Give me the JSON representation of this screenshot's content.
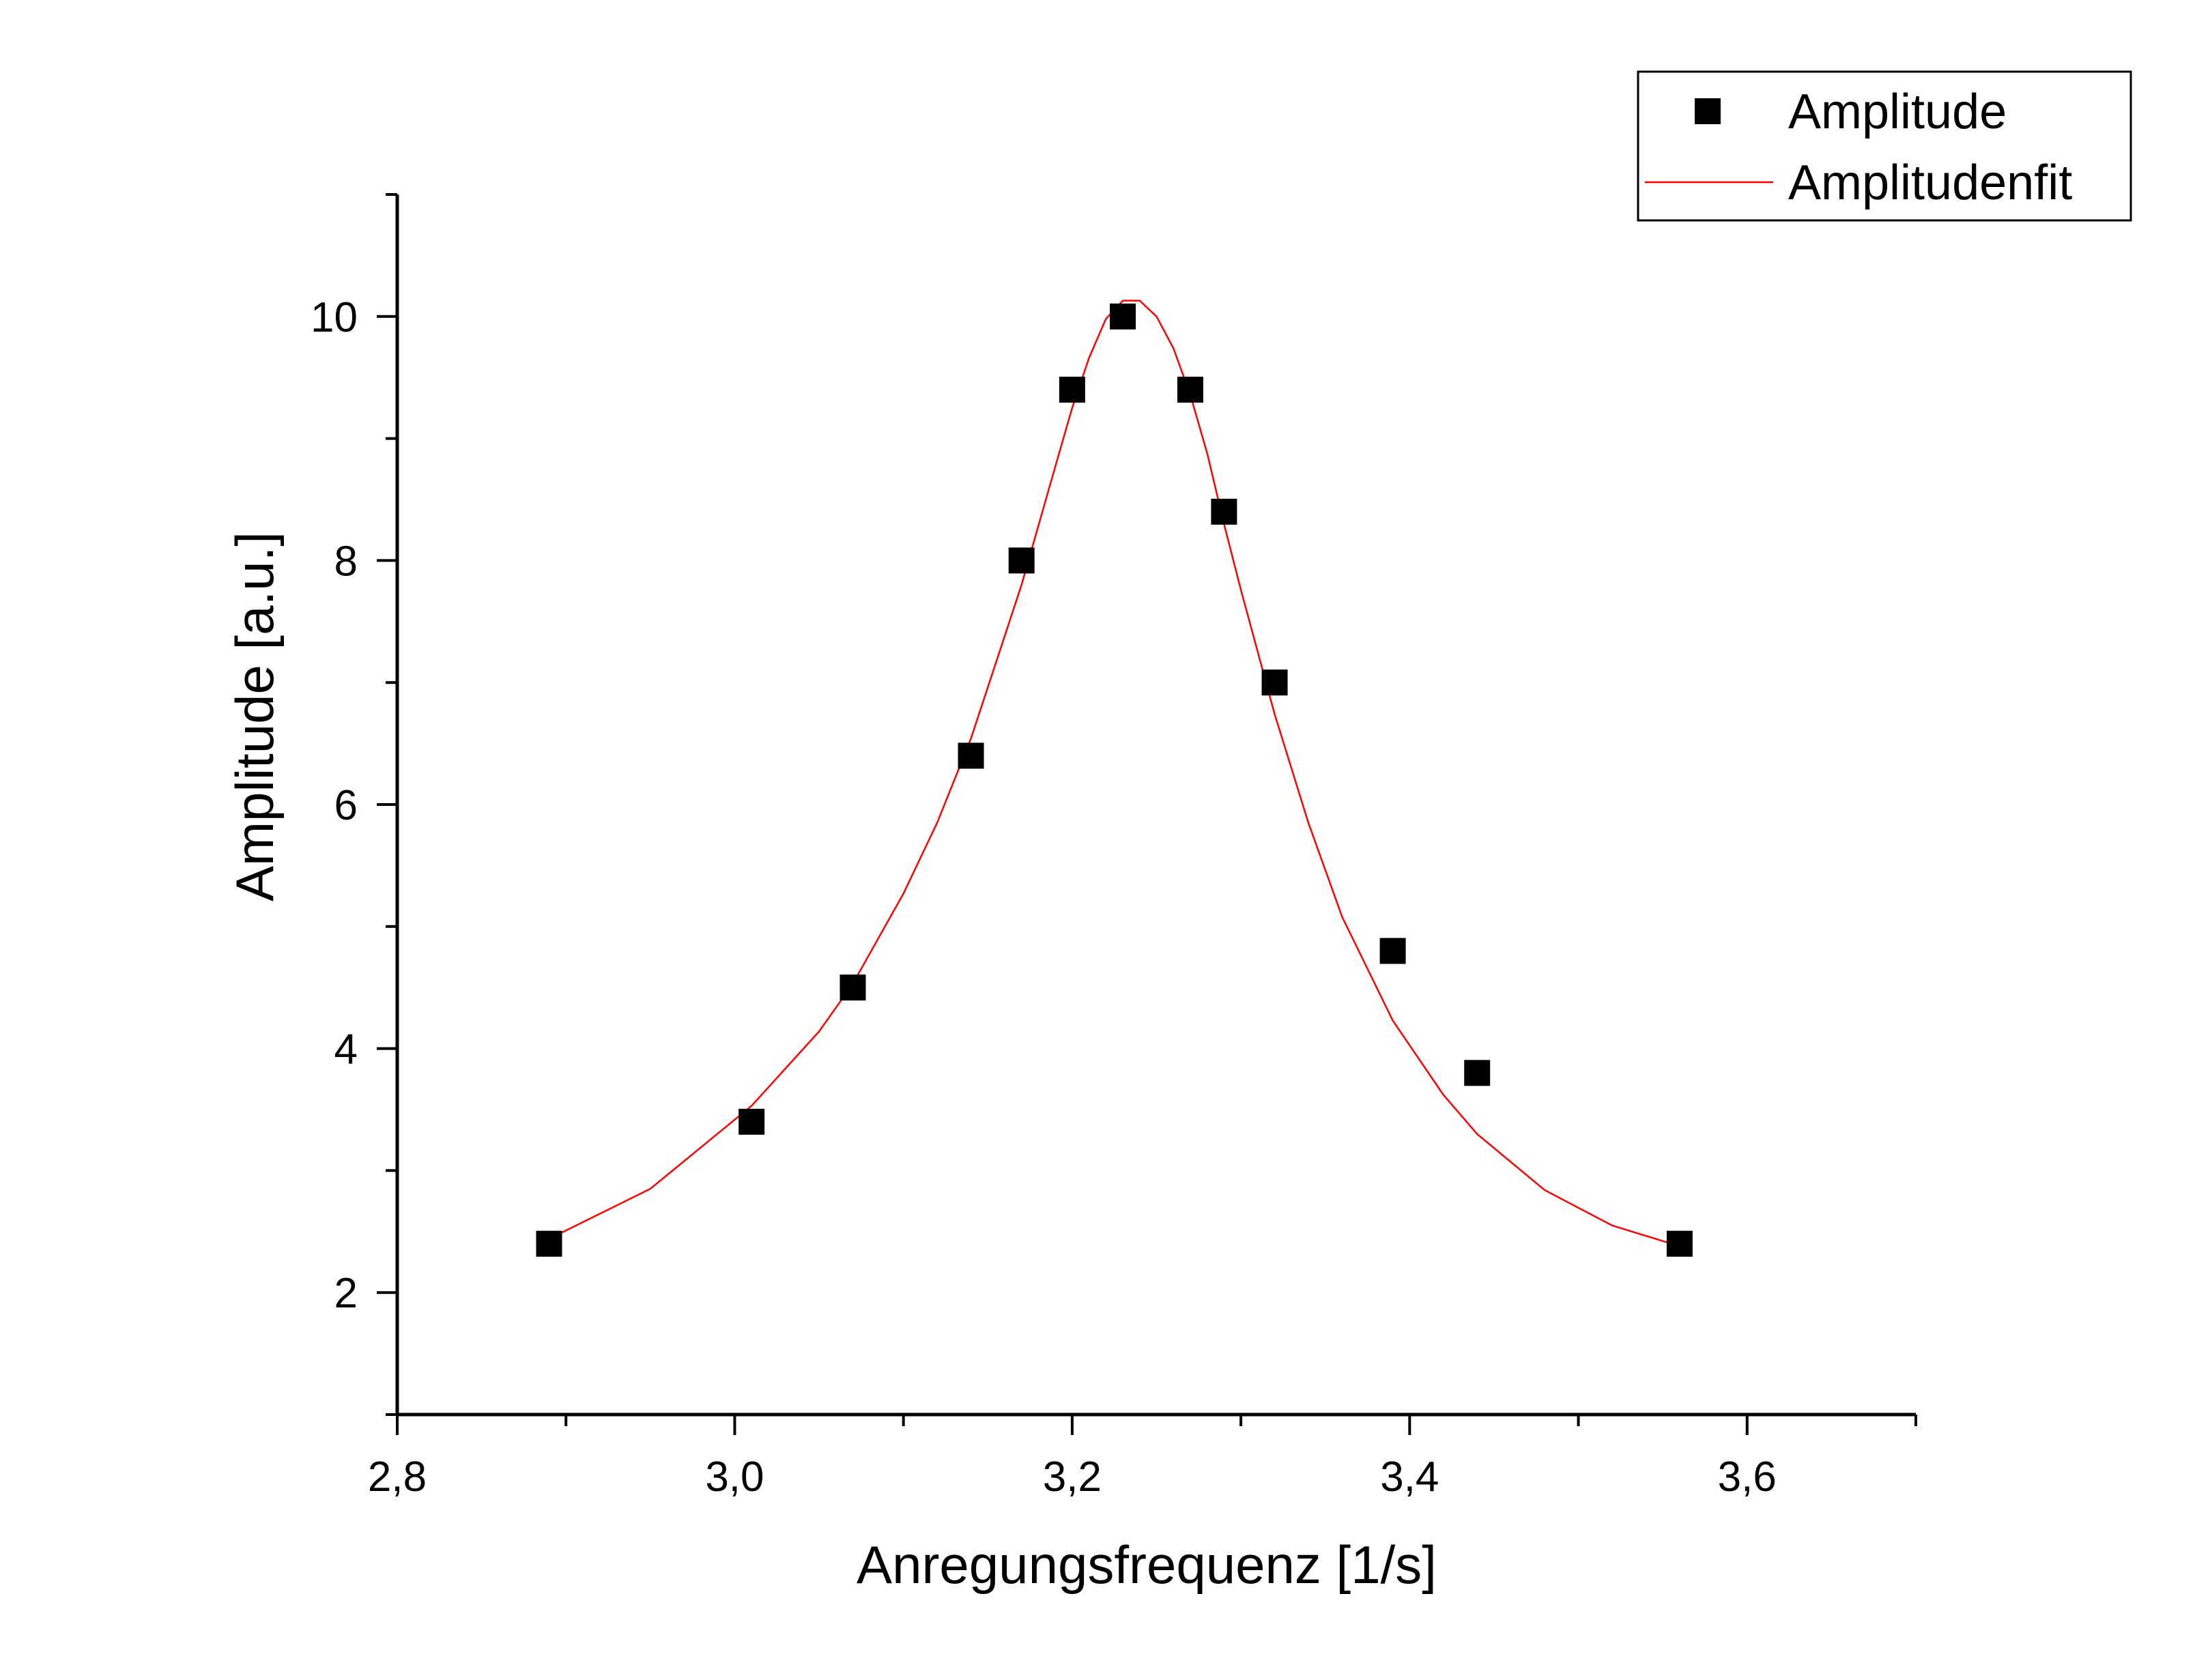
{
  "chart_data": {
    "type": "scatter",
    "xlabel": "Anregungsfrequenz [1/s]",
    "ylabel": "Amplitude [a.u.]",
    "xlim": [
      2.8,
      3.7
    ],
    "ylim": [
      1.0,
      11.0
    ],
    "x_ticks": [
      {
        "value": 2.8,
        "label": "2,8"
      },
      {
        "value": 3.0,
        "label": "3,0"
      },
      {
        "value": 3.2,
        "label": "3,2"
      },
      {
        "value": 3.4,
        "label": "3,4"
      },
      {
        "value": 3.6,
        "label": "3,6"
      }
    ],
    "x_minor_ticks": [
      2.9,
      3.1,
      3.3,
      3.5,
      3.7
    ],
    "y_ticks": [
      {
        "value": 2,
        "label": "2"
      },
      {
        "value": 4,
        "label": "4"
      },
      {
        "value": 6,
        "label": "6"
      },
      {
        "value": 8,
        "label": "8"
      },
      {
        "value": 10,
        "label": "10"
      }
    ],
    "y_minor_ticks": [
      1,
      3,
      5,
      7,
      9,
      11
    ],
    "grid": false,
    "legend_position": "top-right",
    "series": [
      {
        "name": "Amplitude",
        "kind": "scatter",
        "marker": "square",
        "color": "#000000",
        "x": [
          2.89,
          3.01,
          3.07,
          3.14,
          3.17,
          3.2,
          3.23,
          3.27,
          3.29,
          3.32,
          3.39,
          3.44,
          3.56
        ],
        "y": [
          2.4,
          3.4,
          4.5,
          6.4,
          8.0,
          9.4,
          10.0,
          9.4,
          8.4,
          7.0,
          4.8,
          3.8,
          2.4
        ]
      },
      {
        "name": "Amplitudenfit",
        "kind": "line",
        "color": "#ff0000",
        "x": [
          2.89,
          2.95,
          3.01,
          3.05,
          3.07,
          3.1,
          3.12,
          3.14,
          3.16,
          3.17,
          3.19,
          3.2,
          3.21,
          3.22,
          3.23,
          3.24,
          3.25,
          3.26,
          3.27,
          3.28,
          3.29,
          3.3,
          3.32,
          3.34,
          3.36,
          3.39,
          3.42,
          3.44,
          3.48,
          3.52,
          3.56
        ],
        "y": [
          2.44,
          2.85,
          3.53,
          4.14,
          4.53,
          5.27,
          5.85,
          6.54,
          7.38,
          7.8,
          8.77,
          9.25,
          9.66,
          9.98,
          10.13,
          10.13,
          10.0,
          9.74,
          9.36,
          8.88,
          8.3,
          7.76,
          6.74,
          5.85,
          5.08,
          4.23,
          3.62,
          3.3,
          2.84,
          2.55,
          2.38
        ]
      }
    ]
  }
}
